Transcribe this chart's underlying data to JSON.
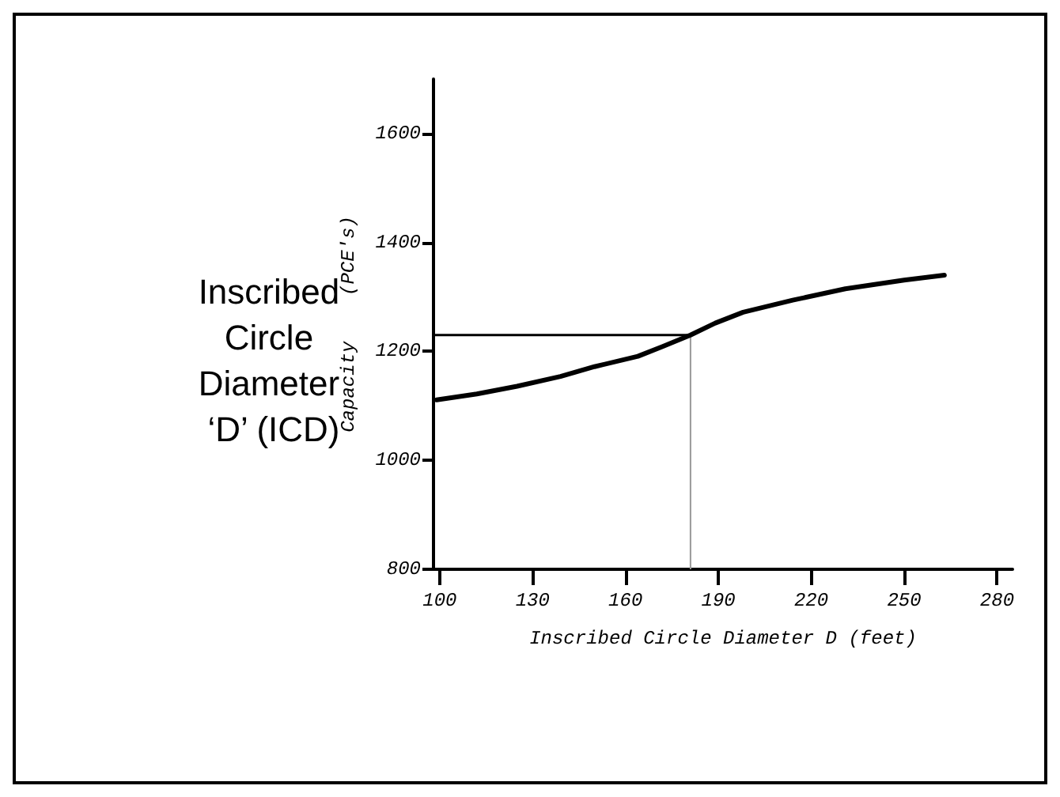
{
  "chart_data": {
    "type": "line",
    "title": "Inscribed Circle Diameter ‘D’ (ICD)",
    "xlabel": "Inscribed Circle Diameter D (feet)",
    "ylabel": "Capacity    (PCE's)",
    "x": [
      99,
      112,
      125,
      139,
      150,
      164,
      172,
      181,
      189,
      198,
      214,
      231,
      250,
      263
    ],
    "series": [
      {
        "color": "#000000",
        "values": [
          1111,
          1122,
          1136,
          1154,
          1172,
          1191,
          1209,
          1230,
          1252,
          1272,
          1294,
          1315,
          1331,
          1340
        ]
      }
    ],
    "xlim": [
      98,
      285
    ],
    "ylim": [
      800,
      1700
    ],
    "xticks": [
      100,
      130,
      160,
      190,
      220,
      250,
      280
    ],
    "yticks": [
      800,
      1000,
      1200,
      1400,
      1600
    ],
    "ref_lines": [
      {
        "axis": "y",
        "value": 1230,
        "color": "#000000"
      },
      {
        "axis": "x",
        "value": 181,
        "color": "#999999"
      }
    ],
    "grid": false,
    "marker": "none",
    "line_style": "solid"
  }
}
